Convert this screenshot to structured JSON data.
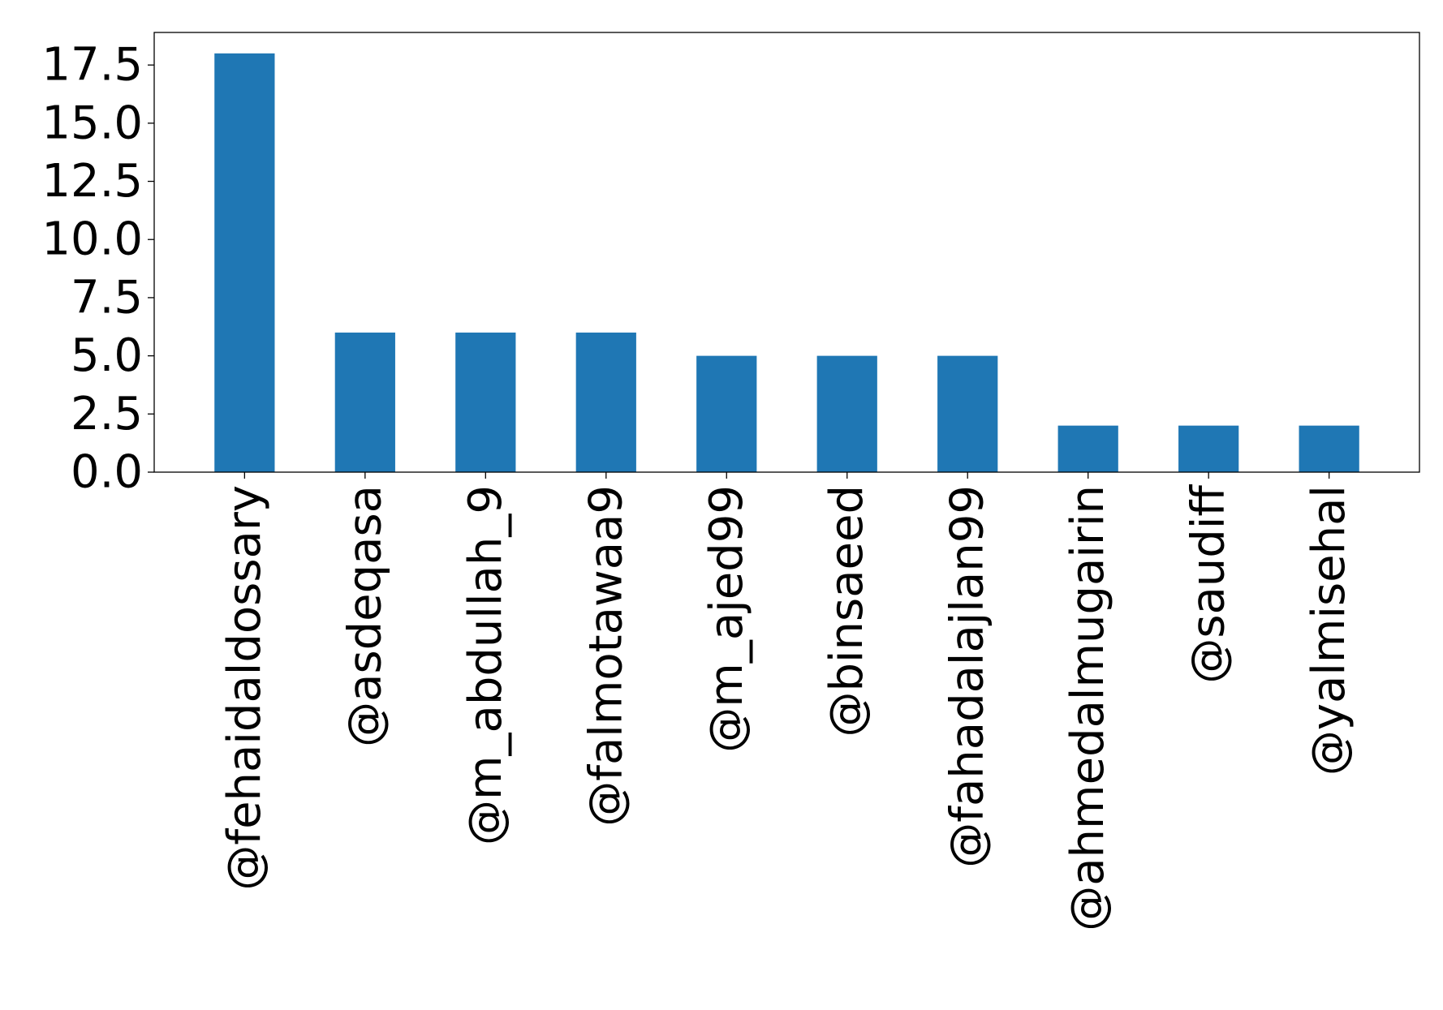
{
  "chart_data": {
    "type": "bar",
    "title": "",
    "xlabel": "",
    "ylabel": "",
    "categories": [
      "@fehaidaldossary",
      "@asdeqasa",
      "@m_abdullah_9",
      "@falmotawaa9",
      "@m_ajed99",
      "@binsaeed",
      "@fahadalajlan99",
      "@ahmedalmugairin",
      "@saudiff",
      "@yalmisehal"
    ],
    "values": [
      18,
      6,
      6,
      6,
      5,
      5,
      5,
      2,
      2,
      2
    ],
    "ylim": [
      0,
      18.9
    ],
    "yticks": [
      0.0,
      2.5,
      5.0,
      7.5,
      10.0,
      12.5,
      15.0,
      17.5
    ],
    "ytick_labels": [
      "0.0",
      "2.5",
      "5.0",
      "7.5",
      "10.0",
      "12.5",
      "15.0",
      "17.5"
    ],
    "grid": false,
    "legend": "none",
    "bar_color": "#1f77b4"
  }
}
